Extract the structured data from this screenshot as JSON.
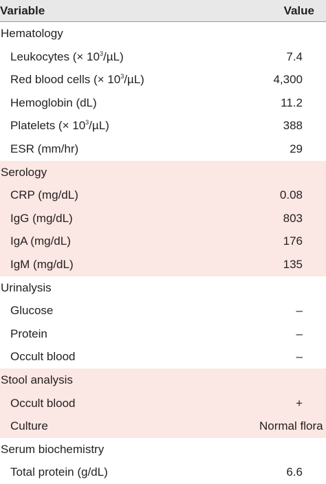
{
  "table": {
    "headers": {
      "variable": "Variable",
      "value": "Value"
    },
    "sections": [
      {
        "title": "Hematology",
        "shaded": false,
        "rows": [
          {
            "label": "Leukocytes (× 10",
            "sup": "3",
            "after": "/µL)",
            "value": "7.4"
          },
          {
            "label": "Red blood cells (× 10",
            "sup": "3",
            "after": "/µL)",
            "value": "4,300"
          },
          {
            "label": "Hemoglobin (dL)",
            "value": "11.2"
          },
          {
            "label": "Platelets (× 10",
            "sup": "3",
            "after": "/µL)",
            "value": "388"
          },
          {
            "label": "ESR (mm/hr)",
            "value": "29"
          }
        ]
      },
      {
        "title": "Serology",
        "shaded": true,
        "rows": [
          {
            "label": "CRP (mg/dL)",
            "value": "0.08"
          },
          {
            "label": "IgG (mg/dL)",
            "value": "803"
          },
          {
            "label": "IgA (mg/dL)",
            "value": "176"
          },
          {
            "label": "IgM (mg/dL)",
            "value": "135"
          }
        ]
      },
      {
        "title": "Urinalysis",
        "shaded": false,
        "rows": [
          {
            "label": "Glucose",
            "value": "–"
          },
          {
            "label": "Protein",
            "value": "–"
          },
          {
            "label": "Occult blood",
            "value": "–"
          }
        ]
      },
      {
        "title": "Stool analysis",
        "shaded": true,
        "rows": [
          {
            "label": "Occult blood",
            "value": "+"
          },
          {
            "label": "Culture",
            "value": "Normal flora",
            "wide": true
          }
        ]
      },
      {
        "title": "Serum biochemistry",
        "shaded": false,
        "rows": [
          {
            "label": "Total protein (g/dL)",
            "value": "6.6"
          }
        ]
      }
    ]
  }
}
